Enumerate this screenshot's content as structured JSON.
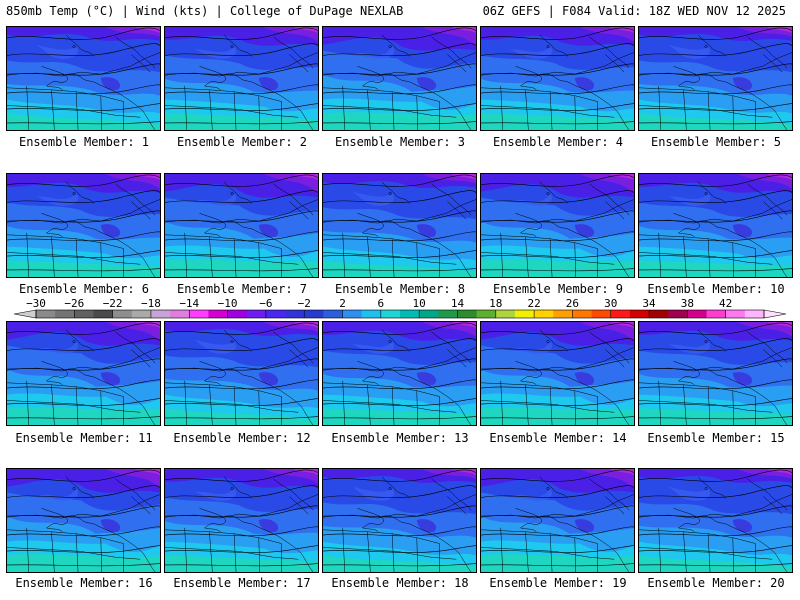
{
  "header": {
    "left": "850mb Temp (°C) | Wind (kts) | College of DuPage NEXLAB",
    "right": "06Z GEFS | F084 Valid: 18Z WED NOV 12 2025"
  },
  "members": [
    {
      "label": "Ensemble Member: 1",
      "shade": 0
    },
    {
      "label": "Ensemble Member: 2",
      "shade": 1
    },
    {
      "label": "Ensemble Member: 3",
      "shade": 2
    },
    {
      "label": "Ensemble Member: 4",
      "shade": 1
    },
    {
      "label": "Ensemble Member: 5",
      "shade": 0
    },
    {
      "label": "Ensemble Member: 6",
      "shade": 1
    },
    {
      "label": "Ensemble Member: 7",
      "shade": 2
    },
    {
      "label": "Ensemble Member: 8",
      "shade": 0
    },
    {
      "label": "Ensemble Member: 9",
      "shade": 2
    },
    {
      "label": "Ensemble Member: 10",
      "shade": 1
    },
    {
      "label": "Ensemble Member: 11",
      "shade": 2
    },
    {
      "label": "Ensemble Member: 12",
      "shade": 0
    },
    {
      "label": "Ensemble Member: 13",
      "shade": 1
    },
    {
      "label": "Ensemble Member: 14",
      "shade": 2
    },
    {
      "label": "Ensemble Member: 15",
      "shade": 1
    },
    {
      "label": "Ensemble Member: 16",
      "shade": 2
    },
    {
      "label": "Ensemble Member: 17",
      "shade": 1
    },
    {
      "label": "Ensemble Member: 18",
      "shade": 0
    },
    {
      "label": "Ensemble Member: 19",
      "shade": 2
    },
    {
      "label": "Ensemble Member: 20",
      "shade": 0
    }
  ],
  "colorbar": {
    "ticks": [
      "-30",
      "-26",
      "-22",
      "-18",
      "-14",
      "-10",
      "-6",
      "-2",
      "2",
      "6",
      "10",
      "14",
      "18",
      "22",
      "26",
      "30",
      "34",
      "38",
      "42"
    ],
    "colors": [
      "#8a8a8a",
      "#747474",
      "#606060",
      "#4a4a4a",
      "#8e8e8e",
      "#a9a9a9",
      "#c8a4d6",
      "#e07ee0",
      "#ff3cff",
      "#d200d2",
      "#a000e0",
      "#6e1ef0",
      "#4a28f0",
      "#3234d8",
      "#283cd2",
      "#2a5fe0",
      "#2f8ff0",
      "#1ec0f0",
      "#1fd4d4",
      "#00bcb4",
      "#00a78a",
      "#1f9a4a",
      "#2e8b2e",
      "#5fb02f",
      "#b0d43b",
      "#f0f000",
      "#ffd200",
      "#ffa000",
      "#ff7800",
      "#ff4a00",
      "#ff1a1a",
      "#d20000",
      "#a00000",
      "#a00050",
      "#d2008c",
      "#ff3cd2",
      "#ff78f0",
      "#ffb4ff"
    ]
  }
}
